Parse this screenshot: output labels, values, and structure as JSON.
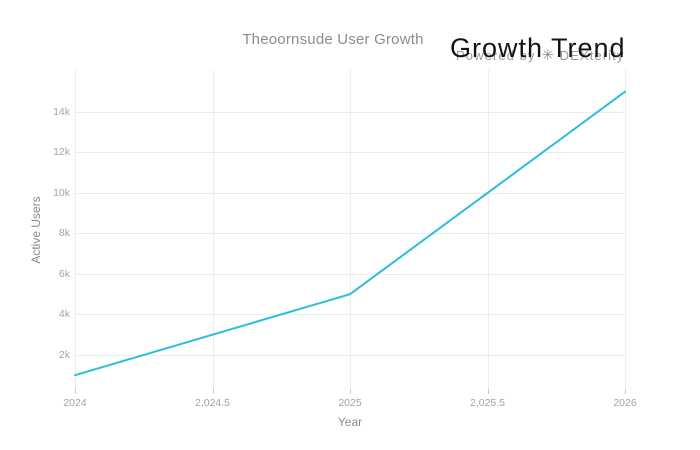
{
  "watermark": {
    "prefix": "Powered by",
    "icon": "✳",
    "suffix": "DEXterity"
  },
  "colors": {
    "line": "#2cbdda",
    "grid": "#ececec",
    "tick_label": "#a2a2a2",
    "axis_title": "#8c8c8c",
    "title": "#8c8c8c",
    "annotation": "#141414",
    "watermark": "#9a9a9a"
  },
  "chart_data": {
    "type": "line",
    "title": "Theoornsude User Growth",
    "annotation": "Growth Trend",
    "xlabel": "Year",
    "ylabel": "Active Users",
    "x": [
      2024,
      2025,
      2026
    ],
    "y": [
      1000,
      5000,
      15000
    ],
    "xlim": [
      2024,
      2026
    ],
    "ylim": [
      270,
      16070
    ],
    "xticks": {
      "values": [
        2024,
        2024.5,
        2025,
        2025.5,
        2026
      ],
      "labels": [
        "2024",
        "2,024.5",
        "2025",
        "2,025.5",
        "2026"
      ]
    },
    "yticks": {
      "values": [
        2000,
        4000,
        6000,
        8000,
        10000,
        12000,
        14000
      ],
      "labels": [
        "2k",
        "4k",
        "6k",
        "8k",
        "10k",
        "12k",
        "14k"
      ]
    },
    "grid": true,
    "legend": "none",
    "line_color": "#2cbdda"
  }
}
